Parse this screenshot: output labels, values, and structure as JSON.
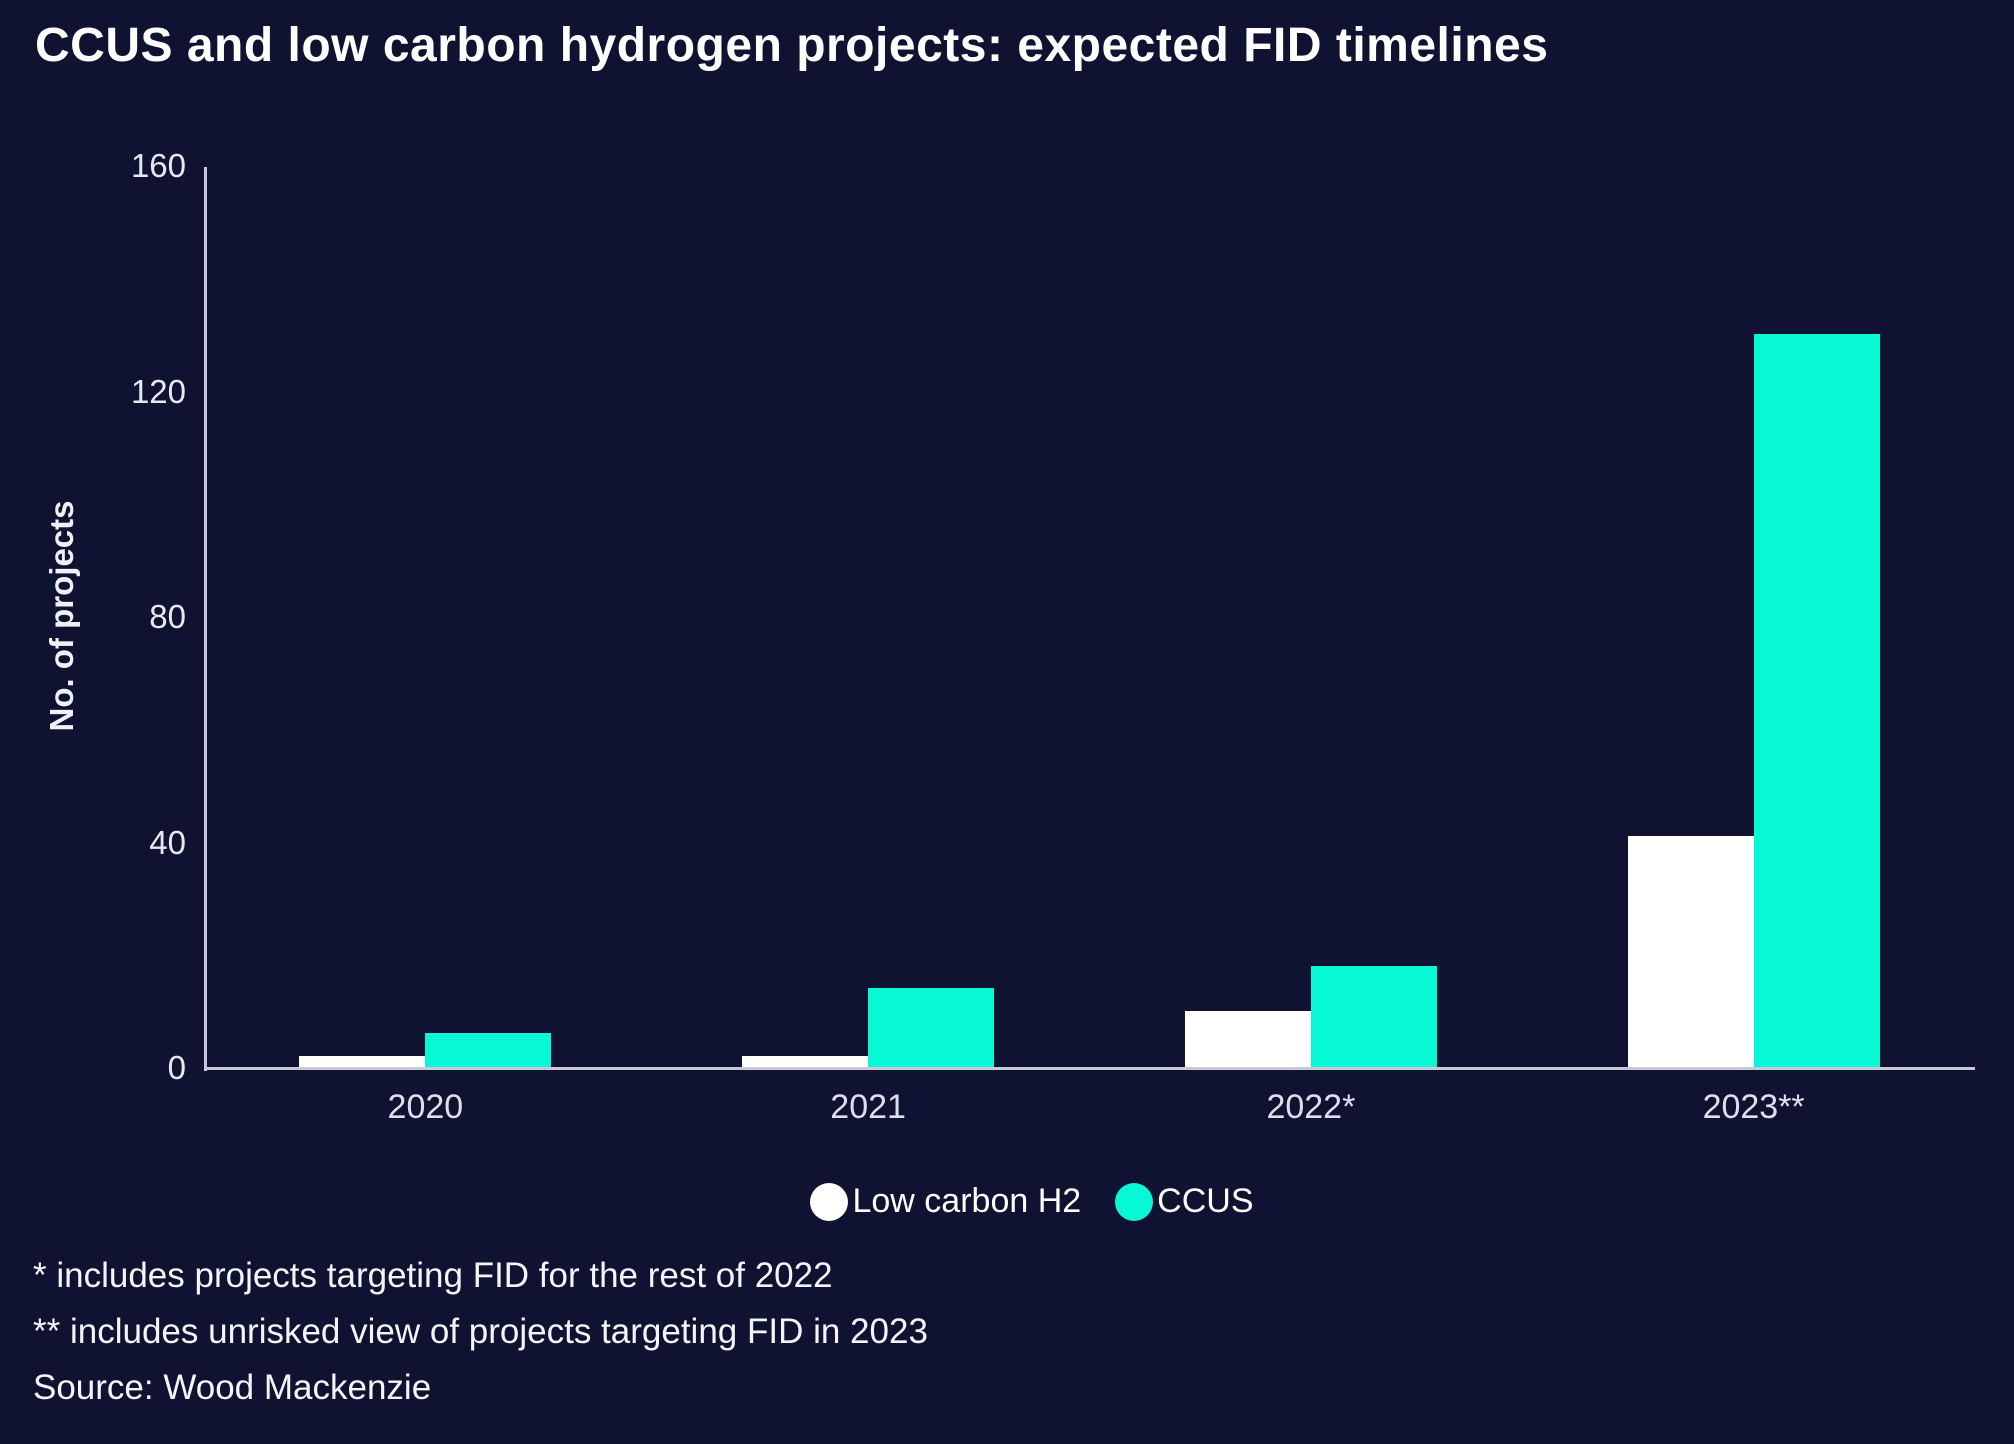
{
  "title": "CCUS and low carbon hydrogen projects: expected FID timelines",
  "colors": {
    "background": "#0f1231",
    "axis": "#c7c9d6",
    "tick_text": "#e8e9f0",
    "h2_series": "#ffffff",
    "ccus_series": "#06f9d4"
  },
  "chart_data": {
    "type": "bar",
    "categories": [
      "2020",
      "2021",
      "2022*",
      "2023**"
    ],
    "series": [
      {
        "name": "Low carbon H2",
        "color": "#ffffff",
        "values": [
          2,
          2,
          10,
          41
        ]
      },
      {
        "name": "CCUS",
        "color": "#06f9d4",
        "values": [
          6,
          14,
          18,
          130
        ]
      }
    ],
    "title": "CCUS and low carbon hydrogen projects: expected FID timelines",
    "xlabel": "",
    "ylabel": "No. of projects",
    "ylim": [
      0,
      160
    ],
    "yticks": [
      0,
      40,
      80,
      120,
      160
    ],
    "grid": false,
    "legend_position": "bottom"
  },
  "legend": {
    "items": [
      {
        "label": "Low carbon H2",
        "color": "#ffffff"
      },
      {
        "label": "CCUS",
        "color": "#06f9d4"
      }
    ]
  },
  "footnotes": {
    "line1": "* includes projects targeting FID for the rest of 2022",
    "line2": "** includes unrisked view of projects targeting FID in 2023",
    "source": "Source: Wood Mackenzie"
  }
}
